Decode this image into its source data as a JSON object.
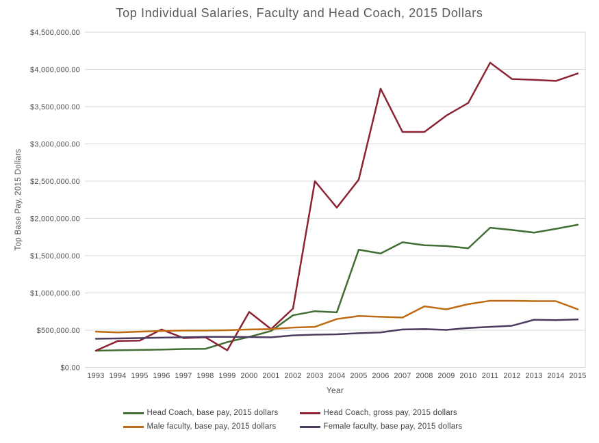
{
  "chart_data": {
    "type": "line",
    "title": "Top Individual Salaries, Faculty and Head Coach, 2015 Dollars",
    "xlabel": "Year",
    "ylabel": "Top Base Pay, 2015 Dollars",
    "x": [
      1993,
      1994,
      1995,
      1996,
      1997,
      1998,
      1999,
      2000,
      2001,
      2002,
      2003,
      2004,
      2005,
      2006,
      2007,
      2008,
      2009,
      2010,
      2011,
      2012,
      2013,
      2014,
      2015
    ],
    "ylim": [
      0,
      4500000
    ],
    "y_tick_step": 500000,
    "y_tick_labels": [
      "$0.00",
      "$500,000.00",
      "$1,000,000.00",
      "$1,500,000.00",
      "$2,000,000.00",
      "$2,500,000.00",
      "$3,000,000.00",
      "$3,500,000.00",
      "$4,000,000.00",
      "$4,500,000.00"
    ],
    "grid": true,
    "legend_position": "bottom",
    "series": [
      {
        "name": "Head Coach, base pay, 2015 dollars",
        "color": "#406e32",
        "values": [
          225000,
          230000,
          235000,
          240000,
          248000,
          250000,
          340000,
          410000,
          490000,
          700000,
          755000,
          740000,
          1580000,
          1530000,
          1680000,
          1640000,
          1630000,
          1600000,
          1875000,
          1845000,
          1810000,
          1860000,
          1915000
        ]
      },
      {
        "name": "Head Coach, gross pay, 2015 dollars",
        "color": "#8b2332",
        "values": [
          225000,
          355000,
          360000,
          510000,
          395000,
          405000,
          230000,
          745000,
          515000,
          790000,
          2500000,
          2145000,
          2520000,
          3740000,
          3160000,
          3160000,
          3380000,
          3550000,
          4090000,
          3870000,
          3860000,
          3845000,
          3945000
        ]
      },
      {
        "name": "Male faculty, base pay, 2015 dollars",
        "color": "#bf6b13",
        "values": [
          480000,
          470000,
          480000,
          490000,
          495000,
          495000,
          500000,
          510000,
          515000,
          535000,
          545000,
          650000,
          690000,
          680000,
          670000,
          820000,
          780000,
          850000,
          895000,
          895000,
          890000,
          890000,
          780000
        ]
      },
      {
        "name": "Female faculty, base pay, 2015 dollars",
        "color": "#4a3b5f",
        "values": [
          385000,
          390000,
          395000,
          400000,
          405000,
          410000,
          410000,
          408000,
          405000,
          430000,
          440000,
          445000,
          460000,
          470000,
          510000,
          515000,
          505000,
          530000,
          545000,
          560000,
          640000,
          635000,
          645000
        ]
      }
    ],
    "colors": {
      "gridline": "#d9d9d9",
      "title_text": "#595959",
      "tick_text": "#4d4d4d",
      "legend_text": "#404040"
    }
  }
}
